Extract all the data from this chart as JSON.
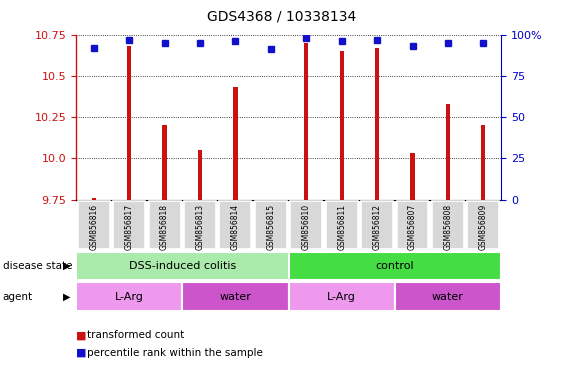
{
  "title": "GDS4368 / 10338134",
  "samples": [
    "GSM856816",
    "GSM856817",
    "GSM856818",
    "GSM856813",
    "GSM856814",
    "GSM856815",
    "GSM856810",
    "GSM856811",
    "GSM856812",
    "GSM856807",
    "GSM856808",
    "GSM856809"
  ],
  "bar_values": [
    9.76,
    10.68,
    10.2,
    10.05,
    10.43,
    9.73,
    10.7,
    10.65,
    10.67,
    10.03,
    10.33,
    10.2
  ],
  "dot_values": [
    92,
    97,
    95,
    95,
    96,
    91,
    98,
    96,
    97,
    93,
    95,
    95
  ],
  "ymin": 9.75,
  "ymax": 10.75,
  "bar_color": "#cc1111",
  "dot_color": "#1111cc",
  "bar_bottom": 9.75,
  "yticks_left": [
    9.75,
    10.0,
    10.25,
    10.5,
    10.75
  ],
  "yticks_right": [
    0,
    25,
    50,
    75,
    100
  ],
  "disease_state_groups": [
    {
      "label": "DSS-induced colitis",
      "start": 0,
      "end": 5,
      "color": "#aaeaaa"
    },
    {
      "label": "control",
      "start": 6,
      "end": 11,
      "color": "#44dd44"
    }
  ],
  "agent_groups": [
    {
      "label": "L-Arg",
      "start": 0,
      "end": 2,
      "color": "#ee99ee"
    },
    {
      "label": "water",
      "start": 3,
      "end": 5,
      "color": "#cc55cc"
    },
    {
      "label": "L-Arg",
      "start": 6,
      "end": 8,
      "color": "#ee99ee"
    },
    {
      "label": "water",
      "start": 9,
      "end": 11,
      "color": "#cc55cc"
    }
  ],
  "legend_bar_label": "transformed count",
  "legend_dot_label": "percentile rank within the sample",
  "left_axis_color": "#cc1111",
  "right_axis_color": "#0000cc",
  "label_bg_color": "#d8d8d8",
  "bar_width": 0.12
}
